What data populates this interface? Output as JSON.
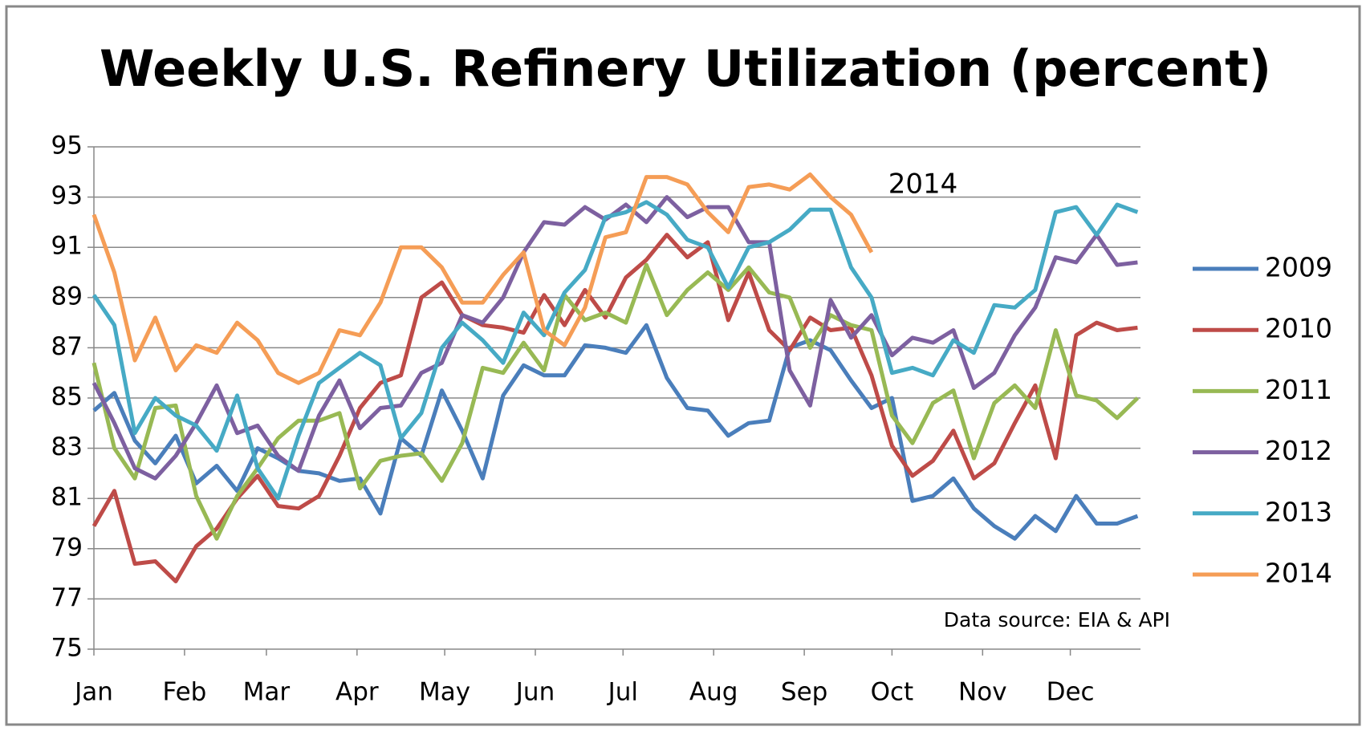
{
  "chart_data": {
    "type": "line",
    "title": "Weekly U.S. Refinery Utilization (percent)",
    "annotation": "2014",
    "source": "Data source: EIA & API",
    "x": [
      1,
      8,
      15,
      22,
      29,
      36,
      43,
      50,
      57,
      64,
      71,
      78,
      85,
      92,
      99,
      106,
      113,
      120,
      127,
      134,
      141,
      148,
      155,
      162,
      169,
      176,
      183,
      190,
      197,
      204,
      211,
      218,
      225,
      232,
      239,
      246,
      253,
      260,
      267,
      274,
      281,
      288,
      295,
      302,
      309,
      316,
      323,
      330,
      337,
      344,
      351,
      358
    ],
    "xlim": [
      1,
      359
    ],
    "xticks": [
      {
        "value": 1,
        "label": "Jan"
      },
      {
        "value": 32,
        "label": "Feb"
      },
      {
        "value": 60,
        "label": "Mar"
      },
      {
        "value": 91,
        "label": "Apr"
      },
      {
        "value": 121,
        "label": "May"
      },
      {
        "value": 152,
        "label": "Jun"
      },
      {
        "value": 182,
        "label": "Jul"
      },
      {
        "value": 213,
        "label": "Aug"
      },
      {
        "value": 244,
        "label": "Sep"
      },
      {
        "value": 274,
        "label": "Oct"
      },
      {
        "value": 305,
        "label": "Nov"
      },
      {
        "value": 335,
        "label": "Dec"
      }
    ],
    "ylim": [
      75,
      95
    ],
    "yticks": [
      75,
      77,
      79,
      81,
      83,
      85,
      87,
      89,
      91,
      93,
      95
    ],
    "grid": true,
    "series": [
      {
        "name": "2009",
        "color": "#4a7ebb",
        "values": [
          84.5,
          85.2,
          83.3,
          82.4,
          83.5,
          81.6,
          82.3,
          81.3,
          83.0,
          82.6,
          82.1,
          82.0,
          81.7,
          81.8,
          80.4,
          83.4,
          82.7,
          85.3,
          83.7,
          81.8,
          85.1,
          86.3,
          85.9,
          85.9,
          87.1,
          87.0,
          86.8,
          87.9,
          85.8,
          84.6,
          84.5,
          83.5,
          84.0,
          84.1,
          87.0,
          87.3,
          86.9,
          85.7,
          84.6,
          85.0,
          80.9,
          81.1,
          81.8,
          80.6,
          79.9,
          79.4,
          80.3,
          79.7,
          81.1,
          80.0,
          80.0,
          80.3
        ]
      },
      {
        "name": "2010",
        "color": "#be4b48",
        "values": [
          79.9,
          81.3,
          78.4,
          78.5,
          77.7,
          79.1,
          79.8,
          81.0,
          81.9,
          80.7,
          80.6,
          81.1,
          82.7,
          84.6,
          85.6,
          85.9,
          89.0,
          89.6,
          88.3,
          87.9,
          87.8,
          87.6,
          89.1,
          87.9,
          89.3,
          88.2,
          89.8,
          90.5,
          91.5,
          90.6,
          91.2,
          88.1,
          90.0,
          87.7,
          86.9,
          88.2,
          87.7,
          87.8,
          85.9,
          83.1,
          81.9,
          82.5,
          83.7,
          81.8,
          82.4,
          84.0,
          85.5,
          82.6,
          87.5,
          88.0,
          87.7,
          87.8
        ]
      },
      {
        "name": "2011",
        "color": "#98b954",
        "values": [
          86.4,
          83.0,
          81.8,
          84.6,
          84.7,
          81.1,
          79.4,
          81.1,
          82.2,
          83.4,
          84.1,
          84.1,
          84.4,
          81.4,
          82.5,
          82.7,
          82.8,
          81.7,
          83.2,
          86.2,
          86.0,
          87.2,
          86.1,
          89.1,
          88.1,
          88.4,
          88.0,
          90.3,
          88.3,
          89.3,
          90.0,
          89.3,
          90.2,
          89.2,
          89.0,
          87.0,
          88.3,
          87.9,
          87.7,
          84.3,
          83.2,
          84.8,
          85.3,
          82.6,
          84.8,
          85.5,
          84.6,
          87.7,
          85.1,
          84.9,
          84.2,
          85.0
        ]
      },
      {
        "name": "2012",
        "color": "#7d60a0",
        "values": [
          85.6,
          84.0,
          82.2,
          81.8,
          82.7,
          84.0,
          85.5,
          83.6,
          83.9,
          82.7,
          82.1,
          84.3,
          85.7,
          83.8,
          84.6,
          84.7,
          86.0,
          86.4,
          88.3,
          88.0,
          89.0,
          90.8,
          92.0,
          91.9,
          92.6,
          92.1,
          92.7,
          92.0,
          93.0,
          92.2,
          92.6,
          92.6,
          91.2,
          91.2,
          86.1,
          84.7,
          88.9,
          87.4,
          88.3,
          86.7,
          87.4,
          87.2,
          87.7,
          85.4,
          86.0,
          87.5,
          88.6,
          90.6,
          90.4,
          91.5,
          90.3,
          90.4
        ]
      },
      {
        "name": "2013",
        "color": "#46aac5",
        "values": [
          89.1,
          87.9,
          83.6,
          85.0,
          84.3,
          83.9,
          82.9,
          85.1,
          82.2,
          81.0,
          83.5,
          85.6,
          86.2,
          86.8,
          86.3,
          83.4,
          84.4,
          87.0,
          88.0,
          87.3,
          86.4,
          88.4,
          87.5,
          89.2,
          90.1,
          92.2,
          92.4,
          92.8,
          92.3,
          91.3,
          91.0,
          89.4,
          91.0,
          91.2,
          91.7,
          92.5,
          92.5,
          90.2,
          89.0,
          86.0,
          86.2,
          85.9,
          87.3,
          86.8,
          88.7,
          88.6,
          89.3,
          92.4,
          92.6,
          91.5,
          92.7,
          92.4
        ]
      },
      {
        "name": "2014",
        "color": "#f59d56",
        "values": [
          92.3,
          90.0,
          86.5,
          88.2,
          86.1,
          87.1,
          86.8,
          88.0,
          87.3,
          86.0,
          85.6,
          86.0,
          87.7,
          87.5,
          88.8,
          91.0,
          91.0,
          90.2,
          88.8,
          88.8,
          89.9,
          90.8,
          87.7,
          87.1,
          88.6,
          91.4,
          91.6,
          93.8,
          93.8,
          93.5,
          92.4,
          91.6,
          93.4,
          93.5,
          93.3,
          93.9,
          93.0,
          92.3,
          90.8,
          null,
          null,
          null,
          null,
          null,
          null,
          null,
          null,
          null,
          null,
          null,
          null,
          null
        ]
      }
    ]
  }
}
